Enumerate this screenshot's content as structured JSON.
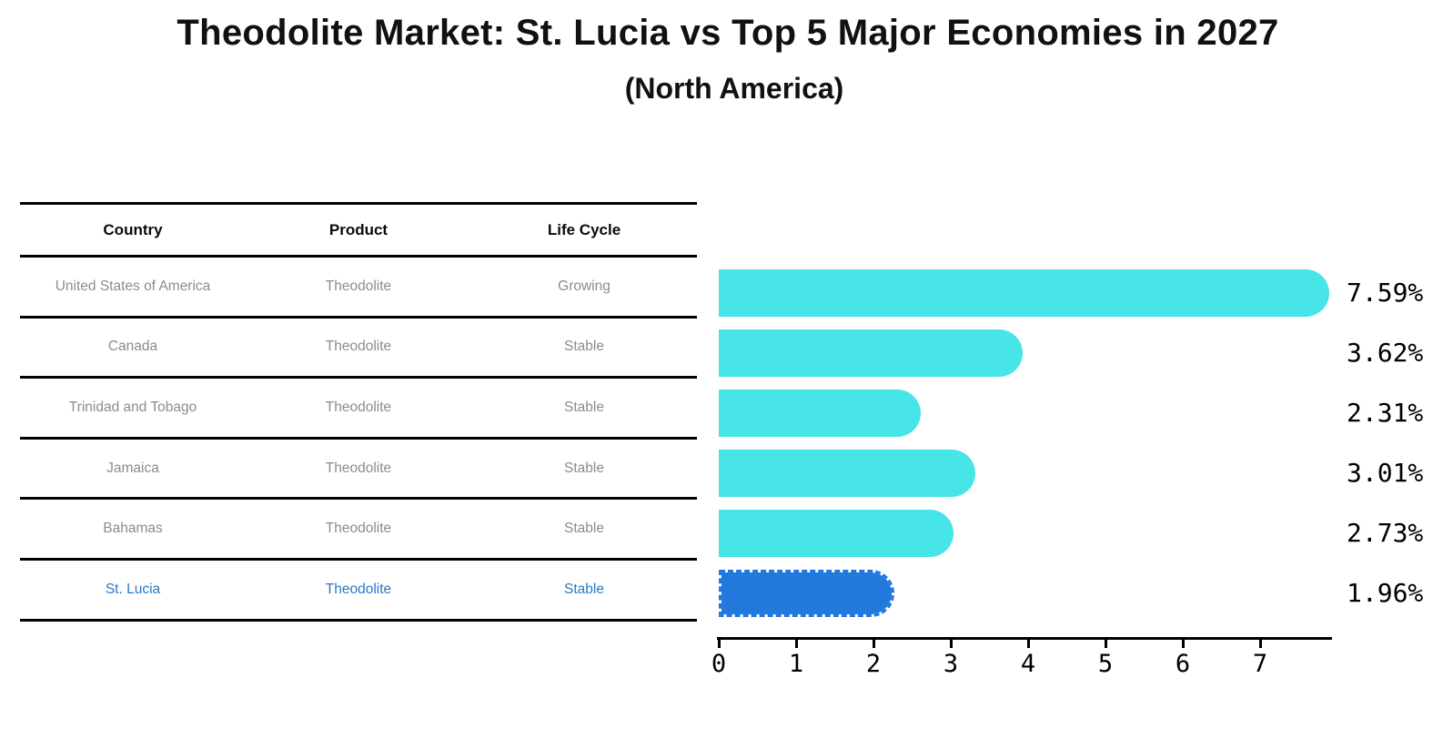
{
  "title": "Theodolite Market: St. Lucia vs Top 5 Major Economies in 2027",
  "subtitle": "(North America)",
  "table": {
    "headers": [
      "Country",
      "Product",
      "Life Cycle"
    ],
    "rows": [
      {
        "country": "United States of America",
        "product": "Theodolite",
        "life_cycle": "Growing",
        "highlight": false
      },
      {
        "country": "Canada",
        "product": "Theodolite",
        "life_cycle": "Stable",
        "highlight": false
      },
      {
        "country": "Trinidad and Tobago",
        "product": "Theodolite",
        "life_cycle": "Stable",
        "highlight": false
      },
      {
        "country": "Jamaica",
        "product": "Theodolite",
        "life_cycle": "Stable",
        "highlight": false
      },
      {
        "country": "Bahamas",
        "product": "Theodolite",
        "life_cycle": "Stable",
        "highlight": false
      },
      {
        "country": "St. Lucia",
        "product": "Theodolite",
        "life_cycle": "Stable",
        "highlight": true
      }
    ]
  },
  "chart_data": {
    "type": "bar",
    "orientation": "horizontal",
    "title": "Theodolite Market: St. Lucia vs Top 5 Major Economies in 2027",
    "subtitle": "(North America)",
    "categories": [
      "United States of America",
      "Canada",
      "Trinidad and Tobago",
      "Jamaica",
      "Bahamas",
      "St. Lucia"
    ],
    "values": [
      7.59,
      3.62,
      2.31,
      3.01,
      2.73,
      1.96
    ],
    "value_labels": [
      "7.59%",
      "3.62%",
      "2.31%",
      "3.01%",
      "2.73%",
      "1.96%"
    ],
    "x_ticks": [
      0,
      1,
      2,
      3,
      4,
      5,
      6,
      7
    ],
    "x_tick_labels": [
      "0",
      "1",
      "2",
      "3",
      "4",
      "5",
      "6",
      "7"
    ],
    "xlim": [
      0,
      7.9
    ],
    "grid": false,
    "legend": false,
    "highlight_index": 5,
    "bar_color": "#47e4e8",
    "highlight_bar_color": "#2278dc",
    "highlight_text_color": "#2679c6",
    "label_color": "#000000",
    "row_text_color": "#8c8c8c"
  }
}
